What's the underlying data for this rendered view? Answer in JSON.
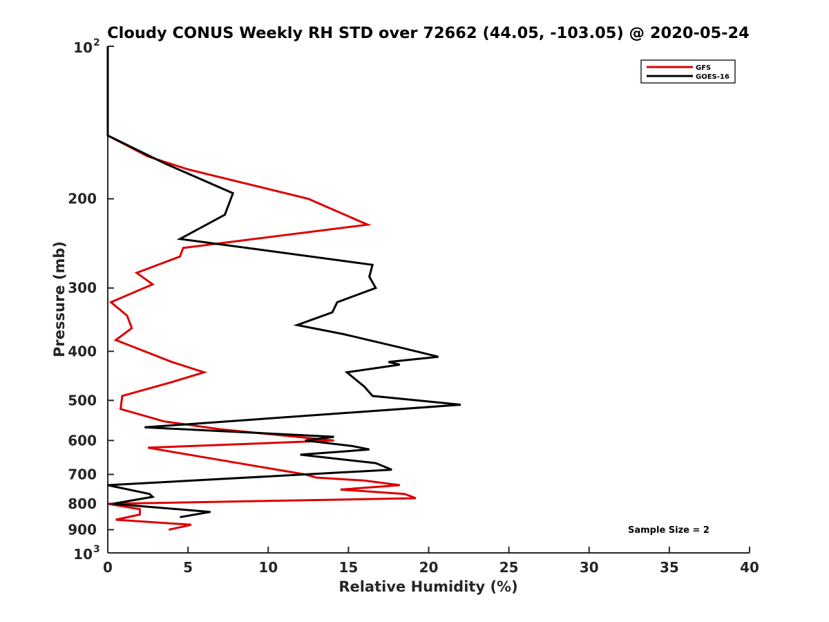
{
  "chart_data": {
    "type": "line",
    "title": "Cloudy CONUS Weekly RH STD over 72662 (44.05, -103.05) @ 2020-05-24",
    "xlabel": "Relative Humidity (%)",
    "ylabel": "Pressure (mb)",
    "xlim": [
      0,
      40
    ],
    "ylim": [
      100,
      1000
    ],
    "yscale": "log",
    "y_reversed": true,
    "x_ticks": [
      "0",
      "5",
      "10",
      "15",
      "20",
      "25",
      "30",
      "35",
      "40"
    ],
    "y_ticks": [
      {
        "value": 100,
        "label": "10",
        "sup": "2"
      },
      {
        "value": 200,
        "label": "200",
        "sup": ""
      },
      {
        "value": 300,
        "label": "300",
        "sup": ""
      },
      {
        "value": 400,
        "label": "400",
        "sup": ""
      },
      {
        "value": 500,
        "label": "500",
        "sup": ""
      },
      {
        "value": 600,
        "label": "600",
        "sup": ""
      },
      {
        "value": 700,
        "label": "700",
        "sup": ""
      },
      {
        "value": 800,
        "label": "800",
        "sup": ""
      },
      {
        "value": 900,
        "label": "900",
        "sup": ""
      },
      {
        "value": 1000,
        "label": "10",
        "sup": "3"
      }
    ],
    "grid": false,
    "legend_position": "top-right",
    "annotation": "Sample Size = 2",
    "series": [
      {
        "name": "GFS",
        "color": "#dd0000",
        "points": [
          [
            0,
            100
          ],
          [
            0,
            150
          ],
          [
            2.5,
            165
          ],
          [
            5,
            175
          ],
          [
            12.5,
            200
          ],
          [
            16.2,
            225
          ],
          [
            4.7,
            250
          ],
          [
            4.5,
            260
          ],
          [
            1.8,
            280
          ],
          [
            2.8,
            295
          ],
          [
            0.2,
            320
          ],
          [
            1.2,
            340
          ],
          [
            1.5,
            360
          ],
          [
            0.5,
            380
          ],
          [
            4,
            420
          ],
          [
            6,
            440
          ],
          [
            4,
            460
          ],
          [
            0.9,
            490
          ],
          [
            0.8,
            520
          ],
          [
            3.5,
            550
          ],
          [
            7,
            570
          ],
          [
            14.1,
            600
          ],
          [
            2.5,
            620
          ],
          [
            12.3,
            700
          ],
          [
            13,
            710
          ],
          [
            16,
            720
          ],
          [
            18.2,
            735
          ],
          [
            14.5,
            750
          ],
          [
            18.5,
            765
          ],
          [
            19.2,
            780
          ],
          [
            0,
            800
          ],
          [
            2,
            820
          ],
          [
            2,
            840
          ],
          [
            0.5,
            860
          ],
          [
            5.2,
            880
          ],
          [
            3.8,
            900
          ]
        ]
      },
      {
        "name": "GOES-16",
        "color": "#000000",
        "points": [
          [
            0,
            100
          ],
          [
            0,
            150
          ],
          [
            3.5,
            170
          ],
          [
            7.8,
            195
          ],
          [
            7.3,
            215
          ],
          [
            4.5,
            240
          ],
          [
            16.5,
            270
          ],
          [
            16.3,
            285
          ],
          [
            16.7,
            300
          ],
          [
            14.3,
            320
          ],
          [
            14,
            335
          ],
          [
            11.8,
            355
          ],
          [
            14.7,
            370
          ],
          [
            18.5,
            395
          ],
          [
            20.6,
            410
          ],
          [
            17.5,
            420
          ],
          [
            18.2,
            425
          ],
          [
            14.9,
            440
          ],
          [
            16,
            470
          ],
          [
            16.5,
            490
          ],
          [
            22,
            510
          ],
          [
            2.3,
            565
          ],
          [
            14.1,
            590
          ],
          [
            12.3,
            600
          ],
          [
            15.2,
            615
          ],
          [
            16.3,
            625
          ],
          [
            12,
            640
          ],
          [
            16.7,
            665
          ],
          [
            17.7,
            685
          ],
          [
            0,
            735
          ],
          [
            2.6,
            765
          ],
          [
            2.8,
            775
          ],
          [
            0.3,
            800
          ],
          [
            6.4,
            830
          ],
          [
            4.5,
            850
          ]
        ]
      }
    ]
  }
}
